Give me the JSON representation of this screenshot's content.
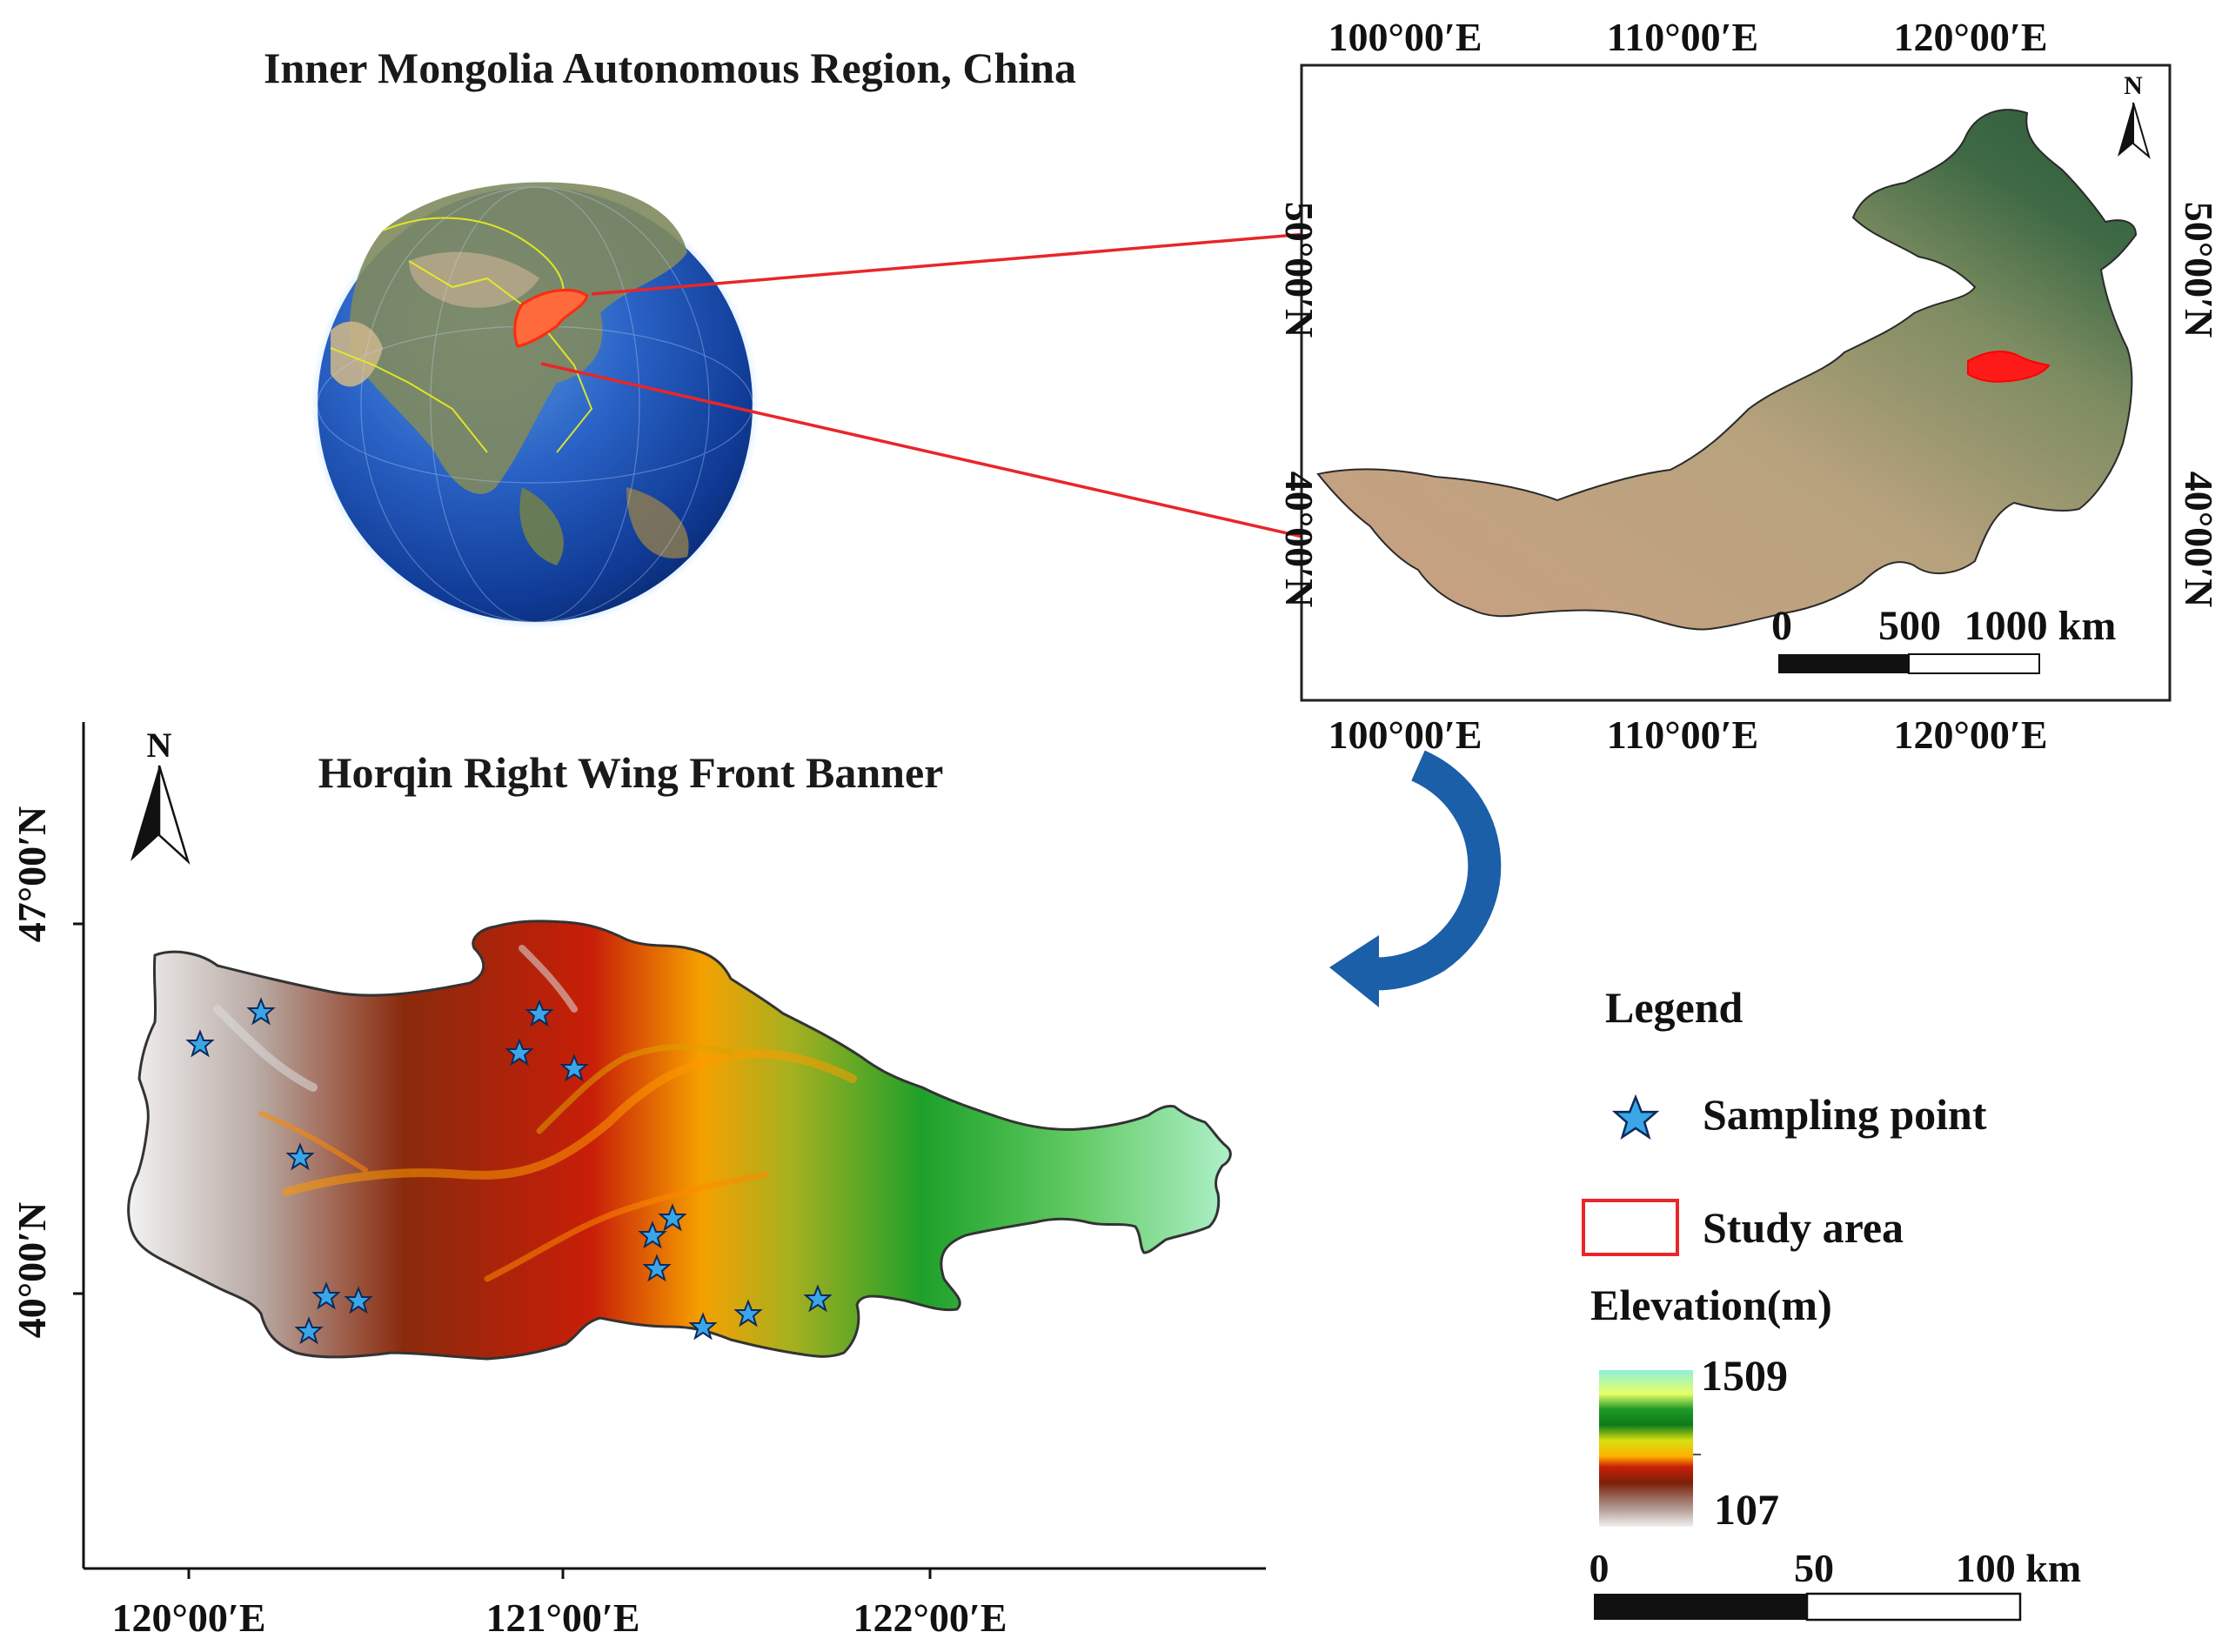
{
  "globe_panel": {
    "title": "Inner Mongolia Autonomous Region, China"
  },
  "region_panel": {
    "top_ticks": [
      "100°00′E",
      "110°00′E",
      "120°00′E"
    ],
    "bottom_ticks": [
      "100°00′E",
      "110°00′E",
      "120°00′E"
    ],
    "left_ticks": [
      "50°00′N",
      "40°00′N"
    ],
    "right_ticks": [
      "50°00′N",
      "40°00′N"
    ],
    "north_label": "N",
    "scale_labels": [
      "0",
      "500",
      "1000 km"
    ]
  },
  "study_panel": {
    "title": "Horqin Right Wing Front Banner",
    "north_label": "N",
    "y_ticks": [
      "47°00′N",
      "40°00′N"
    ],
    "x_ticks": [
      "120°00′E",
      "121°00′E",
      "122°00′E"
    ]
  },
  "legend": {
    "title": "Legend",
    "sampling_label": "Sampling point",
    "study_area_label": "Study area",
    "elevation_title": "Elevation(m)",
    "elevation_max": "1509",
    "elevation_min": "107",
    "scale_labels": [
      "0",
      "50",
      "100 km"
    ]
  },
  "colors": {
    "arrow_red": "#e8262a",
    "study_area_red": "#ff1a1a",
    "star_fill": "#3aa6e8",
    "curve_arrow": "#1a5fa8",
    "map_border": "#333333"
  },
  "icons": [
    "globe-image",
    "north-arrow-icon",
    "curved-arrow-icon",
    "star-icon"
  ]
}
